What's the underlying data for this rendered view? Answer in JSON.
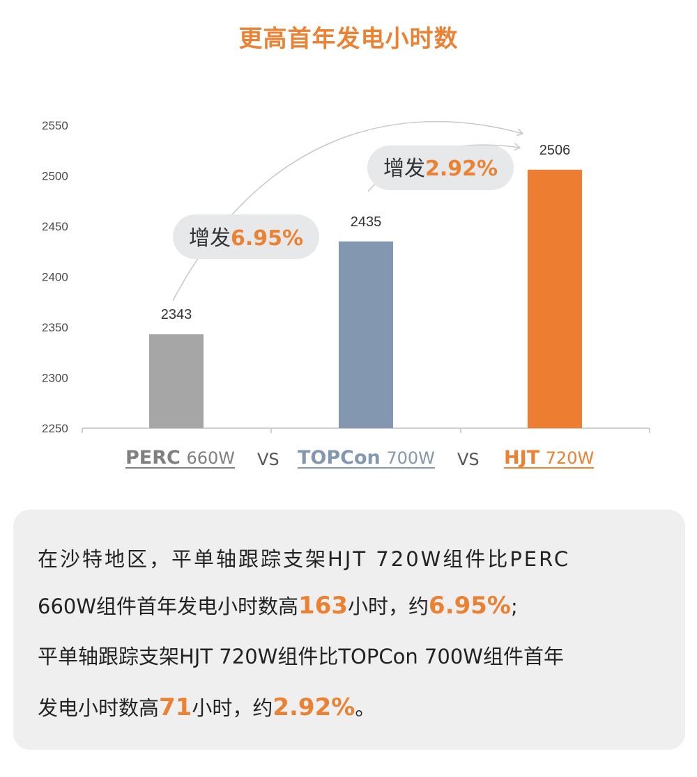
{
  "colors": {
    "accent": "#ea8133",
    "perc": "#a6a6a6",
    "topcon": "#8497b0",
    "hjt": "#ed7d31"
  },
  "chart_data": {
    "type": "bar",
    "title": "更高首年发电小时数",
    "categories": [
      "PERC 660W",
      "TOPCon 700W",
      "HJT 720W"
    ],
    "values": [
      2343,
      2435,
      2506
    ],
    "ylim": [
      2250,
      2550
    ],
    "yticks": [
      2250,
      2300,
      2350,
      2400,
      2450,
      2500,
      2550
    ],
    "grid": false,
    "annotations": [
      {
        "prefix": "增发",
        "value": "6.95%",
        "from": "PERC 660W",
        "to": "HJT 720W"
      },
      {
        "prefix": "增发",
        "value": "2.92%",
        "from": "TOPCon 700W",
        "to": "HJT 720W"
      }
    ]
  },
  "legend": {
    "perc": {
      "name": "PERC",
      "power": "660W"
    },
    "vs1": "VS",
    "topcon": {
      "name": "TOPCon",
      "power": "700W"
    },
    "vs2": "VS",
    "hjt": {
      "name": "HJT",
      "power": "720W"
    }
  },
  "note": {
    "line1": "在沙特地区，平单轴跟踪支架HJT 720W组件比PERC",
    "line2_a": "660W组件首年发电小时数高",
    "line2_v1": "163",
    "line2_b": "小时，约",
    "line2_v2": "6.95%",
    "line2_c": ";",
    "line3": "平单轴跟踪支架HJT 720W组件比TOPCon 700W组件首年",
    "line4_a": "发电小时数高",
    "line4_v1": "71",
    "line4_b": "小时，约",
    "line4_v2": "2.92%",
    "line4_c": "。"
  }
}
